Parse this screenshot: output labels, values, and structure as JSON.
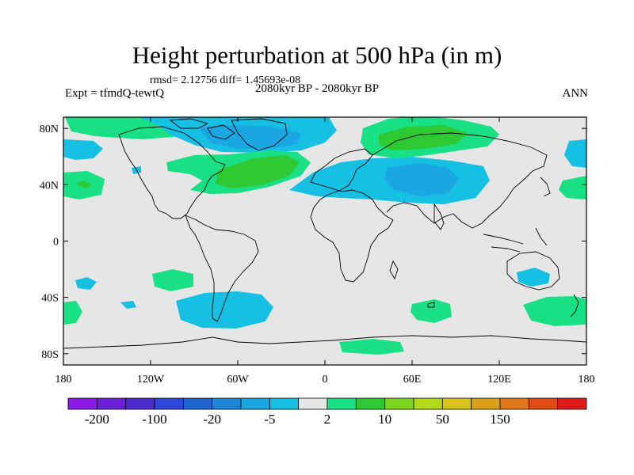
{
  "title": "Height perturbation at 500 hPa (in m)",
  "rmsd_text": "rmsd= 2.12756 diff= 1.45693e-08",
  "left_label": "Expt = tfmdQ-tewtQ",
  "center_label": "2080kyr BP - 2080kyr BP",
  "right_label": "ANN",
  "map": {
    "lon_ticks": [
      "180",
      "120W",
      "60W",
      "0",
      "60E",
      "120E",
      "180"
    ],
    "lat_ticks": [
      "80N",
      "40N",
      "0",
      "40S",
      "80S"
    ],
    "background_color": "#e6e6e6"
  },
  "colorbar": {
    "colors": [
      "#8c1ae6",
      "#6a1fd9",
      "#4a2ccc",
      "#2e48d9",
      "#1f66d1",
      "#1f86d6",
      "#1aa6e0",
      "#15c0e3",
      "#e6e6e6",
      "#1ae085",
      "#2ec832",
      "#7cd61f",
      "#b3d91a",
      "#d9c21a",
      "#d9a01a",
      "#e0781a",
      "#e04a15",
      "#e01a1a"
    ],
    "labels": [
      "-200",
      "-100",
      "-20",
      "-5",
      "2",
      "10",
      "50",
      "150"
    ]
  },
  "contours": [
    {
      "class": "negative",
      "level": "-20",
      "color": "#1aa6e0"
    },
    {
      "class": "negative",
      "level": "-5",
      "color": "#15c0e3"
    },
    {
      "class": "positive",
      "level": "2",
      "color": "#1ae085"
    },
    {
      "class": "positive",
      "level": "10",
      "color": "#2ec832"
    }
  ]
}
